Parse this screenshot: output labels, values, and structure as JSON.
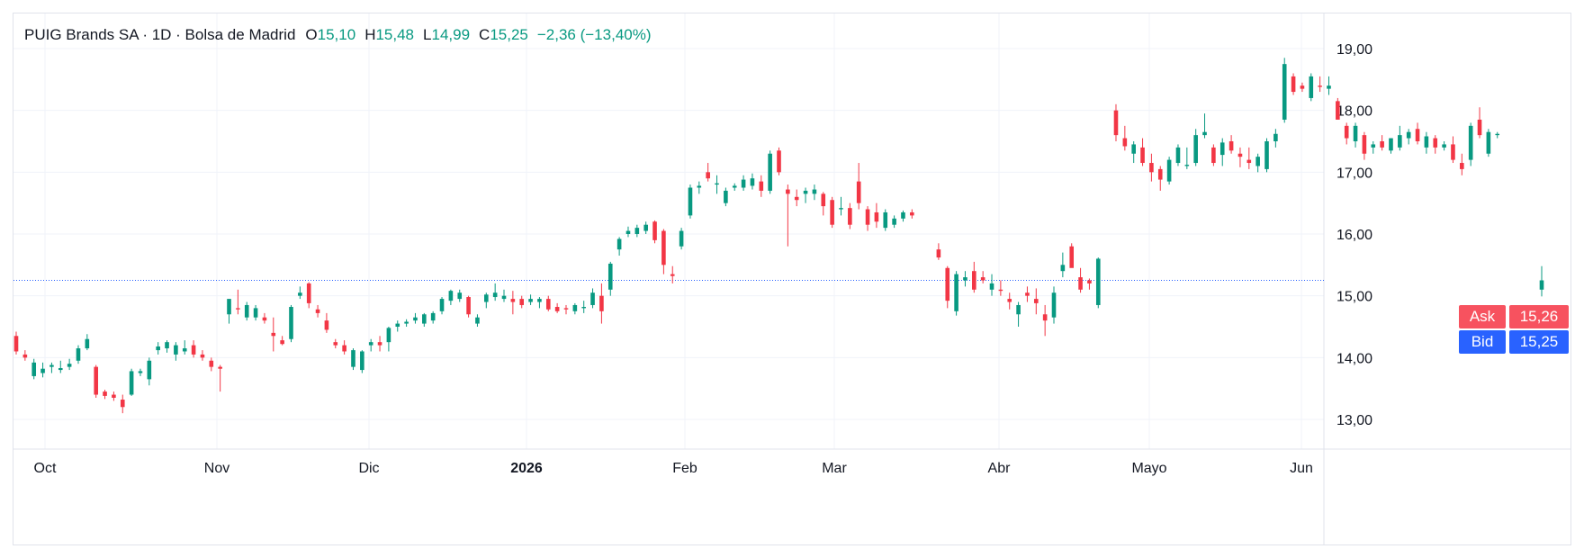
{
  "legend": {
    "symbol": "PUIG Brands SA · 1D · Bolsa de Madrid",
    "open_key": "O",
    "open": "15,10",
    "high_key": "H",
    "high": "15,48",
    "low_key": "L",
    "low": "14,99",
    "close_key": "C",
    "close": "15,25",
    "change": "−2,36 (−13,40%)"
  },
  "quote": {
    "ask_label": "Ask",
    "ask_value": "15,26",
    "bid_label": "Bid",
    "bid_value": "15,25"
  },
  "colors": {
    "up": "#089981",
    "down": "#f23645",
    "grid": "#f0f3fa",
    "price_line": "#2962ff"
  },
  "chart_data": {
    "type": "candlestick",
    "title": "PUIG Brands SA · 1D · Bolsa de Madrid",
    "y_axis": {
      "ticks": [
        "13,00",
        "14,00",
        "15,00",
        "16,00",
        "17,00",
        "18,00",
        "19,00"
      ],
      "range": [
        12.5,
        19.5
      ],
      "position": "right"
    },
    "x_axis": {
      "labels": [
        {
          "text": "Oct",
          "bold": false
        },
        {
          "text": "Nov",
          "bold": false
        },
        {
          "text": "Dic",
          "bold": false
        },
        {
          "text": "2026",
          "bold": true
        },
        {
          "text": "Feb",
          "bold": false
        },
        {
          "text": "Mar",
          "bold": false
        },
        {
          "text": "Abr",
          "bold": false
        },
        {
          "text": "Mayo",
          "bold": false
        },
        {
          "text": "Jun",
          "bold": false
        }
      ]
    },
    "grid": true,
    "current_price": 15.25,
    "candles_ohlc": [
      [
        14.35,
        14.42,
        14.05,
        14.1
      ],
      [
        14.05,
        14.12,
        13.95,
        14.0
      ],
      [
        13.7,
        13.98,
        13.65,
        13.92
      ],
      [
        13.75,
        13.92,
        13.68,
        13.82
      ],
      [
        13.85,
        13.92,
        13.75,
        13.88
      ],
      [
        13.8,
        13.95,
        13.75,
        13.83
      ],
      [
        13.85,
        13.98,
        13.8,
        13.9
      ],
      [
        13.95,
        14.2,
        13.9,
        14.15
      ],
      [
        14.15,
        14.38,
        14.12,
        14.3
      ],
      [
        13.85,
        13.88,
        13.35,
        13.4
      ],
      [
        13.45,
        13.48,
        13.33,
        13.38
      ],
      [
        13.4,
        13.45,
        13.3,
        13.35
      ],
      [
        13.32,
        13.4,
        13.1,
        13.2
      ],
      [
        13.4,
        13.82,
        13.38,
        13.78
      ],
      [
        13.75,
        13.82,
        13.7,
        13.78
      ],
      [
        13.65,
        14.0,
        13.55,
        13.95
      ],
      [
        14.12,
        14.25,
        14.05,
        14.18
      ],
      [
        14.15,
        14.28,
        14.08,
        14.25
      ],
      [
        14.05,
        14.25,
        13.95,
        14.2
      ],
      [
        14.1,
        14.28,
        14.05,
        14.15
      ],
      [
        14.2,
        14.28,
        14.0,
        14.05
      ],
      [
        14.05,
        14.12,
        13.95,
        14.0
      ],
      [
        13.95,
        14.0,
        13.78,
        13.85
      ],
      [
        13.85,
        13.88,
        13.45,
        13.82
      ],
      [
        14.7,
        14.92,
        14.55,
        14.95
      ],
      [
        14.8,
        15.1,
        14.7,
        14.78
      ],
      [
        14.65,
        14.9,
        14.6,
        14.85
      ],
      [
        14.65,
        14.85,
        14.6,
        14.8
      ],
      [
        14.65,
        14.72,
        14.55,
        14.6
      ],
      [
        14.4,
        14.65,
        14.1,
        14.35
      ],
      [
        14.28,
        14.35,
        14.2,
        14.22
      ],
      [
        14.3,
        14.85,
        14.25,
        14.82
      ],
      [
        15.0,
        15.15,
        14.95,
        15.05
      ],
      [
        15.2,
        15.22,
        14.8,
        14.88
      ],
      [
        14.78,
        14.85,
        14.65,
        14.72
      ],
      [
        14.6,
        14.72,
        14.4,
        14.45
      ],
      [
        14.25,
        14.3,
        14.15,
        14.2
      ],
      [
        14.2,
        14.28,
        14.05,
        14.1
      ],
      [
        13.85,
        14.15,
        13.8,
        14.12
      ],
      [
        13.8,
        14.12,
        13.75,
        14.1
      ],
      [
        14.2,
        14.3,
        14.1,
        14.25
      ],
      [
        14.25,
        14.35,
        14.1,
        14.2
      ],
      [
        14.25,
        14.5,
        14.1,
        14.48
      ],
      [
        14.5,
        14.6,
        14.42,
        14.55
      ],
      [
        14.55,
        14.62,
        14.5,
        14.58
      ],
      [
        14.6,
        14.72,
        14.55,
        14.65
      ],
      [
        14.55,
        14.72,
        14.5,
        14.7
      ],
      [
        14.6,
        14.75,
        14.55,
        14.72
      ],
      [
        14.75,
        14.98,
        14.7,
        14.95
      ],
      [
        14.92,
        15.1,
        14.85,
        15.08
      ],
      [
        14.95,
        15.1,
        14.9,
        15.05
      ],
      [
        14.98,
        15.0,
        14.65,
        14.7
      ],
      [
        14.55,
        14.7,
        14.5,
        14.65
      ],
      [
        14.9,
        15.05,
        14.8,
        15.02
      ],
      [
        14.98,
        15.2,
        14.92,
        15.05
      ],
      [
        14.95,
        15.1,
        14.9,
        15.0
      ],
      [
        14.95,
        15.08,
        14.7,
        14.9
      ],
      [
        14.95,
        15.0,
        14.8,
        14.85
      ],
      [
        14.9,
        15.02,
        14.85,
        14.95
      ],
      [
        14.9,
        14.98,
        14.8,
        14.95
      ],
      [
        14.95,
        15.0,
        14.75,
        14.78
      ],
      [
        14.82,
        14.88,
        14.72,
        14.75
      ],
      [
        14.8,
        14.85,
        14.7,
        14.78
      ],
      [
        14.75,
        14.88,
        14.7,
        14.85
      ],
      [
        14.8,
        14.92,
        14.72,
        14.82
      ],
      [
        14.85,
        15.12,
        14.8,
        15.05
      ],
      [
        15.0,
        15.2,
        14.55,
        14.75
      ],
      [
        15.1,
        15.55,
        15.0,
        15.52
      ],
      [
        15.75,
        15.95,
        15.65,
        15.92
      ],
      [
        16.0,
        16.12,
        15.95,
        16.05
      ],
      [
        16.0,
        16.15,
        15.95,
        16.1
      ],
      [
        16.05,
        16.2,
        16.0,
        16.15
      ],
      [
        16.2,
        16.22,
        15.85,
        15.9
      ],
      [
        16.05,
        16.08,
        15.35,
        15.5
      ],
      [
        15.35,
        15.48,
        15.2,
        15.32
      ],
      [
        15.8,
        16.1,
        15.75,
        16.05
      ],
      [
        16.3,
        16.8,
        16.25,
        16.75
      ],
      [
        16.75,
        16.85,
        16.65,
        16.78
      ],
      [
        17.0,
        17.15,
        16.85,
        16.9
      ],
      [
        16.8,
        16.95,
        16.65,
        16.82
      ],
      [
        16.5,
        16.75,
        16.45,
        16.7
      ],
      [
        16.75,
        16.82,
        16.7,
        16.78
      ],
      [
        16.75,
        16.95,
        16.7,
        16.88
      ],
      [
        16.78,
        16.98,
        16.72,
        16.9
      ],
      [
        16.85,
        16.95,
        16.6,
        16.7
      ],
      [
        16.7,
        17.35,
        16.65,
        17.3
      ],
      [
        17.35,
        17.4,
        16.95,
        17.0
      ],
      [
        16.72,
        16.8,
        15.8,
        16.65
      ],
      [
        16.6,
        16.72,
        16.45,
        16.55
      ],
      [
        16.65,
        16.75,
        16.5,
        16.7
      ],
      [
        16.65,
        16.8,
        16.55,
        16.72
      ],
      [
        16.65,
        16.68,
        16.3,
        16.45
      ],
      [
        16.55,
        16.6,
        16.1,
        16.15
      ],
      [
        16.4,
        16.6,
        16.3,
        16.42
      ],
      [
        16.42,
        16.5,
        16.08,
        16.15
      ],
      [
        16.85,
        17.15,
        16.4,
        16.5
      ],
      [
        16.4,
        16.45,
        16.05,
        16.15
      ],
      [
        16.35,
        16.5,
        16.1,
        16.2
      ],
      [
        16.1,
        16.4,
        16.05,
        16.35
      ],
      [
        16.15,
        16.3,
        16.1,
        16.25
      ],
      [
        16.25,
        16.38,
        16.2,
        16.35
      ],
      [
        16.35,
        16.4,
        16.25,
        16.3
      ],
      null,
      null,
      [
        15.75,
        15.85,
        15.58,
        15.62
      ],
      [
        15.45,
        15.48,
        14.8,
        14.92
      ],
      [
        14.75,
        15.4,
        14.68,
        15.35
      ],
      [
        15.25,
        15.4,
        15.15,
        15.3
      ],
      [
        15.4,
        15.55,
        15.05,
        15.1
      ],
      [
        15.3,
        15.4,
        15.2,
        15.25
      ],
      [
        15.1,
        15.35,
        15.0,
        15.2
      ],
      [
        15.1,
        15.25,
        15.0,
        15.08
      ],
      [
        14.95,
        15.05,
        14.78,
        14.9
      ],
      [
        14.7,
        14.9,
        14.5,
        14.85
      ],
      [
        15.05,
        15.15,
        14.9,
        15.0
      ],
      [
        14.95,
        15.12,
        14.7,
        14.88
      ],
      [
        14.7,
        14.85,
        14.35,
        14.6
      ],
      [
        14.65,
        15.15,
        14.55,
        15.05
      ],
      [
        15.4,
        15.7,
        15.3,
        15.5
      ],
      [
        15.8,
        15.85,
        15.5,
        15.45
      ],
      [
        15.3,
        15.45,
        15.05,
        15.1
      ],
      [
        15.25,
        15.28,
        15.1,
        15.2
      ],
      [
        14.85,
        15.62,
        14.8,
        15.6
      ],
      null,
      [
        18.0,
        18.1,
        17.5,
        17.6
      ],
      [
        17.55,
        17.75,
        17.35,
        17.42
      ],
      [
        17.3,
        17.5,
        17.15,
        17.45
      ],
      [
        17.4,
        17.55,
        17.1,
        17.15
      ],
      [
        17.15,
        17.3,
        16.85,
        17.0
      ],
      [
        17.05,
        17.1,
        16.7,
        16.88
      ],
      [
        16.85,
        17.25,
        16.8,
        17.2
      ],
      [
        17.15,
        17.45,
        17.1,
        17.4
      ],
      [
        17.1,
        17.4,
        17.05,
        17.12
      ],
      [
        17.15,
        17.7,
        17.1,
        17.6
      ],
      [
        17.6,
        17.95,
        17.55,
        17.65
      ],
      [
        17.4,
        17.45,
        17.1,
        17.15
      ],
      [
        17.28,
        17.55,
        17.1,
        17.48
      ],
      [
        17.5,
        17.6,
        17.3,
        17.35
      ],
      [
        17.3,
        17.4,
        17.08,
        17.25
      ],
      [
        17.2,
        17.4,
        17.05,
        17.15
      ],
      [
        17.1,
        17.3,
        17.0,
        17.25
      ],
      [
        17.05,
        17.55,
        17.0,
        17.5
      ],
      [
        17.5,
        17.7,
        17.4,
        17.62
      ],
      [
        17.85,
        18.85,
        17.8,
        18.75
      ],
      [
        18.55,
        18.6,
        18.25,
        18.3
      ],
      [
        18.4,
        18.45,
        18.3,
        18.35
      ],
      [
        18.2,
        18.6,
        18.15,
        18.55
      ],
      [
        18.4,
        18.55,
        18.3,
        18.38
      ],
      [
        18.35,
        18.55,
        18.25,
        18.4
      ],
      [
        18.15,
        18.2,
        17.85,
        17.85
      ],
      [
        17.75,
        17.8,
        17.45,
        17.55
      ],
      [
        17.5,
        17.8,
        17.4,
        17.75
      ],
      [
        17.6,
        17.65,
        17.2,
        17.3
      ],
      [
        17.4,
        17.5,
        17.3,
        17.45
      ],
      [
        17.5,
        17.6,
        17.35,
        17.4
      ],
      [
        17.35,
        17.55,
        17.3,
        17.55
      ],
      [
        17.4,
        17.75,
        17.35,
        17.6
      ],
      [
        17.55,
        17.7,
        17.45,
        17.65
      ],
      [
        17.7,
        17.8,
        17.45,
        17.5
      ],
      [
        17.4,
        17.65,
        17.3,
        17.58
      ],
      [
        17.55,
        17.6,
        17.3,
        17.4
      ],
      [
        17.4,
        17.5,
        17.35,
        17.45
      ],
      [
        17.45,
        17.58,
        17.15,
        17.2
      ],
      [
        17.15,
        17.3,
        16.95,
        17.05
      ],
      [
        17.2,
        17.8,
        17.1,
        17.75
      ],
      [
        17.85,
        18.05,
        17.55,
        17.6
      ],
      [
        17.3,
        17.7,
        17.25,
        17.65
      ],
      [
        17.6,
        17.65,
        17.55,
        17.62
      ],
      null,
      null,
      null,
      null,
      [
        15.1,
        15.48,
        14.99,
        15.25
      ]
    ]
  }
}
